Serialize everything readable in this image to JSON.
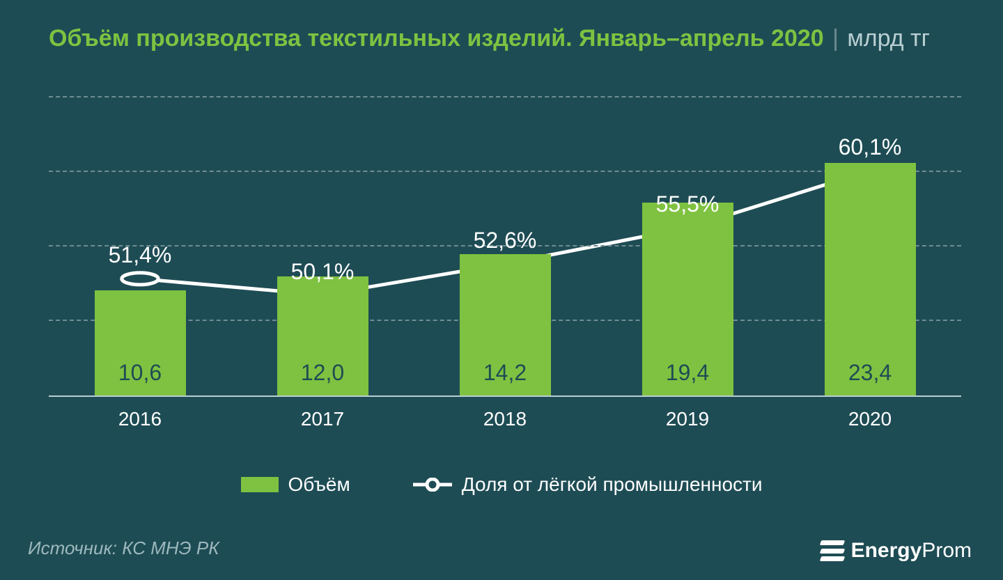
{
  "colors": {
    "background": "#1e4c54",
    "title_main": "#7fc241",
    "title_sep": "#6f8d92",
    "title_unit": "#b9cfd2",
    "grid": "#6f8d92",
    "axis": "#b9cfd2",
    "bar": "#7fc241",
    "bar_text": "#1e4c54",
    "line": "#ffffff",
    "marker_fill": "#1e4c54",
    "marker_stroke": "#ffffff",
    "label_text": "#ffffff",
    "footer_text": "#9db9bd",
    "brand_text": "#ffffff"
  },
  "layout": {
    "title_fontsize": 34,
    "value_fontsize": 32,
    "pct_fontsize": 32,
    "xlabel_fontsize": 28,
    "legend_fontsize": 28,
    "footer_fontsize": 26,
    "brand_fontsize": 30,
    "bar_width_pct": 10,
    "line_stroke": 5,
    "marker_radius": 12,
    "marker_stroke": 5,
    "grid_dash": "10 8",
    "grid_lines_count": 4
  },
  "header": {
    "title": "Объём производства текстильных изделий. Январь–апрель 2020",
    "separator": "|",
    "unit": "млрд тг"
  },
  "chart": {
    "type": "bar+line",
    "categories": [
      "2016",
      "2017",
      "2018",
      "2019",
      "2020"
    ],
    "bars": {
      "values": [
        10.6,
        12.0,
        14.2,
        19.4,
        23.4
      ],
      "display": [
        "10,6",
        "12,0",
        "14,2",
        "19,4",
        "23,4"
      ],
      "ymax": 30
    },
    "line": {
      "values": [
        51.4,
        50.1,
        52.6,
        55.5,
        60.1
      ],
      "display": [
        "51,4%",
        "50,1%",
        "52,6%",
        "55,5%",
        "60,1%"
      ],
      "ymin": 42,
      "ymax": 66
    }
  },
  "legend": {
    "bar_label": "Объём",
    "line_label": "Доля от лёгкой промышленности"
  },
  "footer": {
    "source": "Источник: КС МНЭ РК"
  },
  "brand": {
    "bold": "Energy",
    "light": "Prom"
  }
}
